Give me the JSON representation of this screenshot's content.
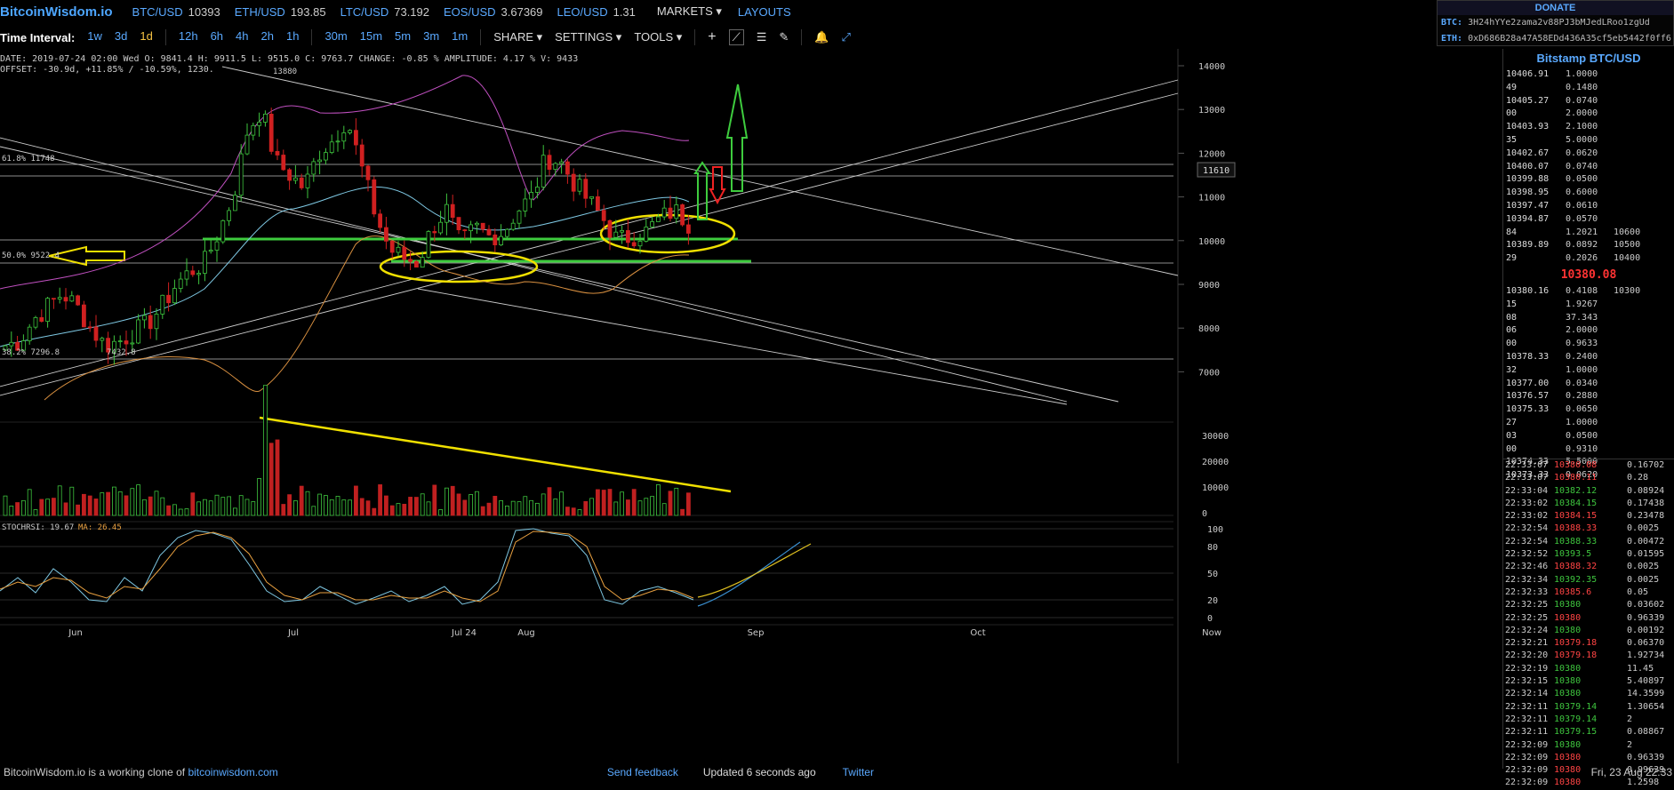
{
  "header": {
    "logo": "BitcoinWisdom.io",
    "tickers": [
      {
        "symbol": "BTC/USD",
        "price": "10393"
      },
      {
        "symbol": "ETH/USD",
        "price": "193.85"
      },
      {
        "symbol": "LTC/USD",
        "price": "73.192"
      },
      {
        "symbol": "EOS/USD",
        "price": "3.67369"
      },
      {
        "symbol": "LEO/USD",
        "price": "1.31"
      }
    ],
    "markets_label": "MARKETS",
    "layouts_label": "LAYOUTS"
  },
  "donate": {
    "title": "DONATE",
    "btc_label": "BTC:",
    "btc_address": "3H24hYYe2zama2v88PJ3bMJedLRoo1zgUd",
    "eth_label": "ETH:",
    "eth_address": "0xD686B28a47A58EDd436A35cf5eb5442f0ff6"
  },
  "toolbar": {
    "interval_label": "Time Interval:",
    "intervals": [
      "1w",
      "3d",
      "1d",
      "12h",
      "6h",
      "4h",
      "2h",
      "1h",
      "30m",
      "15m",
      "5m",
      "3m",
      "1m"
    ],
    "active_interval": "1d",
    "share_label": "SHARE",
    "settings_label": "SETTINGS",
    "tools_label": "TOOLS"
  },
  "info": {
    "line1": "DATE: 2019-07-24 02:00 Wed   O: 9841.4   H: 9911.5   L: 9515.0   C: 9763.7   CHANGE: -0.85 %   AMPLITUDE: 4.17 %   V: 9433",
    "line2": "OFFSET: -30.9d, +11.85% / -10.59%, 1230."
  },
  "chart_data": {
    "type": "candlestick",
    "price_axis_ticks": [
      7000,
      8000,
      9000,
      10000,
      11000,
      12000,
      13000,
      14000
    ],
    "volume_axis_ticks": [
      0,
      10000,
      20000,
      30000
    ],
    "stoch_axis_ticks": [
      0,
      20,
      50,
      80,
      100
    ],
    "x_tick_labels": [
      "Jun",
      "Jul",
      "Jul 24",
      "Aug",
      "Sep",
      "Oct",
      "Now"
    ],
    "current_price_label": "11610",
    "high_label": "13880",
    "low_label": "7432.8",
    "fib_labels": [
      "61.8% 11748",
      "50.0% 9522.4",
      "38.2% 7296.8"
    ],
    "stoch_label": "STOCHRSI: 19.67",
    "ma_label": "MA: 26.45",
    "stoch_values": [
      30,
      45,
      28,
      55,
      40,
      20,
      18,
      45,
      30,
      70,
      90,
      98,
      95,
      88,
      60,
      30,
      18,
      20,
      35,
      25,
      15,
      22,
      30,
      18,
      25,
      35,
      15,
      20,
      40,
      98,
      100,
      95,
      92,
      70,
      20,
      15,
      30,
      35,
      28,
      20
    ],
    "stoch_ma_values": [
      32,
      40,
      35,
      45,
      42,
      28,
      22,
      35,
      32,
      55,
      80,
      92,
      96,
      90,
      72,
      40,
      25,
      20,
      28,
      28,
      20,
      20,
      25,
      22,
      22,
      30,
      22,
      18,
      30,
      85,
      97,
      96,
      94,
      80,
      35,
      20,
      25,
      32,
      30,
      22
    ]
  },
  "orderbook": {
    "title": "Bitstamp BTC/USD",
    "asks": [
      {
        "p": "10406.91",
        "a": "1.0000",
        "c": ""
      },
      {
        "p": "49",
        "a": "0.1480",
        "c": ""
      },
      {
        "p": "10405.27",
        "a": "0.0740",
        "c": ""
      },
      {
        "p": "00",
        "a": "2.0000",
        "c": ""
      },
      {
        "p": "10403.93",
        "a": "2.1000",
        "c": ""
      },
      {
        "p": "35",
        "a": "5.0000",
        "c": ""
      },
      {
        "p": "10402.67",
        "a": "0.0620",
        "c": ""
      },
      {
        "p": "10400.07",
        "a": "0.0740",
        "c": ""
      },
      {
        "p": "10399.88",
        "a": "0.0500",
        "c": ""
      },
      {
        "p": "10398.95",
        "a": "0.6000",
        "c": ""
      },
      {
        "p": "10397.47",
        "a": "0.0610",
        "c": ""
      },
      {
        "p": "10394.87",
        "a": "0.0570",
        "c": ""
      },
      {
        "p": "84",
        "a": "1.2021",
        "c": "10600"
      },
      {
        "p": "10389.89",
        "a": "0.0892",
        "c": "10500"
      },
      {
        "p": "29",
        "a": "0.2026",
        "c": "10400"
      }
    ],
    "last_price": "10380.08",
    "bids": [
      {
        "p": "10380.16",
        "a": "0.4108",
        "c": "10300"
      },
      {
        "p": "15",
        "a": "1.9267",
        "c": ""
      },
      {
        "p": "08",
        "a": "37.343",
        "c": ""
      },
      {
        "p": "06",
        "a": "2.0000",
        "c": ""
      },
      {
        "p": "00",
        "a": "0.9633",
        "c": ""
      },
      {
        "p": "10378.33",
        "a": "0.2400",
        "c": ""
      },
      {
        "p": "32",
        "a": "1.0000",
        "c": ""
      },
      {
        "p": "10377.00",
        "a": "0.0340",
        "c": ""
      },
      {
        "p": "10376.57",
        "a": "0.2880",
        "c": ""
      },
      {
        "p": "10375.33",
        "a": "0.0650",
        "c": ""
      },
      {
        "p": "27",
        "a": "1.0000",
        "c": ""
      },
      {
        "p": "03",
        "a": "0.0500",
        "c": ""
      },
      {
        "p": "00",
        "a": "0.9310",
        "c": ""
      },
      {
        "p": "10374.33",
        "a": "5.5000",
        "c": ""
      },
      {
        "p": "10373.33",
        "a": "0.0620",
        "c": ""
      }
    ]
  },
  "trades": [
    {
      "t": "22:33:07",
      "p": "10380.08",
      "a": "0.16702",
      "dir": "dn"
    },
    {
      "t": "22:33:07",
      "p": "10380.11",
      "a": "0.28",
      "dir": "dn"
    },
    {
      "t": "22:33:04",
      "p": "10382.12",
      "a": "0.08924",
      "dir": "up"
    },
    {
      "t": "22:33:02",
      "p": "10384.15",
      "a": "0.17438",
      "dir": "up"
    },
    {
      "t": "22:33:02",
      "p": "10384.15",
      "a": "0.23478",
      "dir": "dn"
    },
    {
      "t": "22:32:54",
      "p": "10388.33",
      "a": "0.0025",
      "dir": "dn"
    },
    {
      "t": "22:32:54",
      "p": "10388.33",
      "a": "0.00472",
      "dir": "up"
    },
    {
      "t": "22:32:52",
      "p": "10393.5",
      "a": "0.01595",
      "dir": "up"
    },
    {
      "t": "22:32:46",
      "p": "10388.32",
      "a": "0.0025",
      "dir": "dn"
    },
    {
      "t": "22:32:34",
      "p": "10392.35",
      "a": "0.0025",
      "dir": "up"
    },
    {
      "t": "22:32:33",
      "p": "10385.6",
      "a": "0.05",
      "dir": "dn"
    },
    {
      "t": "22:32:25",
      "p": "10380",
      "a": "0.03602",
      "dir": "up"
    },
    {
      "t": "22:32:25",
      "p": "10380",
      "a": "0.96339",
      "dir": "dn"
    },
    {
      "t": "22:32:24",
      "p": "10380",
      "a": "0.00192",
      "dir": "up"
    },
    {
      "t": "22:32:21",
      "p": "10379.18",
      "a": "0.06370",
      "dir": "dn"
    },
    {
      "t": "22:32:20",
      "p": "10379.18",
      "a": "1.92734",
      "dir": "dn"
    },
    {
      "t": "22:32:19",
      "p": "10380",
      "a": "11.45",
      "dir": "up"
    },
    {
      "t": "22:32:15",
      "p": "10380",
      "a": "5.40897",
      "dir": "up"
    },
    {
      "t": "22:32:14",
      "p": "10380",
      "a": "14.3599",
      "dir": "up"
    },
    {
      "t": "22:32:11",
      "p": "10379.14",
      "a": "1.30654",
      "dir": "up"
    },
    {
      "t": "22:32:11",
      "p": "10379.14",
      "a": "2",
      "dir": "up"
    },
    {
      "t": "22:32:11",
      "p": "10379.15",
      "a": "0.08867",
      "dir": "up"
    },
    {
      "t": "22:32:09",
      "p": "10380",
      "a": "2",
      "dir": "up"
    },
    {
      "t": "22:32:09",
      "p": "10380",
      "a": "0.96339",
      "dir": "dn"
    },
    {
      "t": "22:32:09",
      "p": "10380",
      "a": "0.99639",
      "dir": "dn"
    },
    {
      "t": "22:32:09",
      "p": "10380",
      "a": "1.2598",
      "dir": "dn"
    }
  ],
  "footer": {
    "left_text": "BitcoinWisdom.io is a working clone of",
    "clone_link": "bitcoinwisdom.com",
    "feedback_link": "Send feedback",
    "updated_text": "Updated 6 seconds ago",
    "twitter_link": "Twitter",
    "datetime": "Fri, 23 Aug 22:33"
  }
}
